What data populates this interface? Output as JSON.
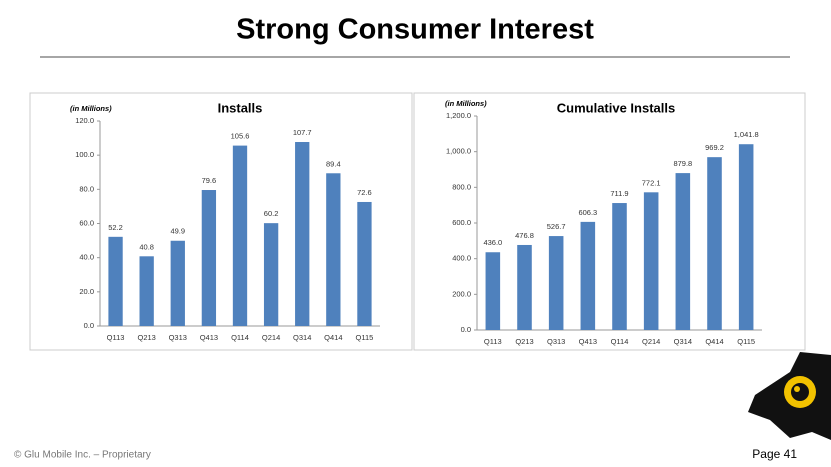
{
  "header": {
    "title": "Strong Consumer Interest"
  },
  "footer": {
    "copyright": "© Glu Mobile Inc. – Proprietary",
    "page": "Page 41"
  },
  "chart_data": [
    {
      "type": "bar",
      "title": "Installs",
      "note": "(in Millions)",
      "categories": [
        "Q113",
        "Q213",
        "Q313",
        "Q413",
        "Q114",
        "Q214",
        "Q314",
        "Q414",
        "Q115"
      ],
      "values": [
        52.2,
        40.8,
        49.9,
        79.6,
        105.6,
        60.2,
        107.7,
        89.4,
        72.6
      ],
      "color": "#4f81bd",
      "grid": false,
      "ylim": [
        0,
        120
      ],
      "yticks": [
        {
          "value": 0,
          "label": "0.0"
        },
        {
          "value": 20,
          "label": "20.0"
        },
        {
          "value": 40,
          "label": "40.0"
        },
        {
          "value": 60,
          "label": "60.0"
        },
        {
          "value": 80,
          "label": "80.0"
        },
        {
          "value": 100,
          "label": "100.0"
        },
        {
          "value": 120,
          "label": "120.0"
        }
      ]
    },
    {
      "type": "bar",
      "title": "Cumulative Installs",
      "note": "(in Millions)",
      "categories": [
        "Q113",
        "Q213",
        "Q313",
        "Q413",
        "Q114",
        "Q214",
        "Q314",
        "Q414",
        "Q115"
      ],
      "values": [
        436.0,
        476.8,
        526.7,
        606.3,
        711.9,
        772.1,
        879.8,
        969.2,
        1041.8
      ],
      "value_labels": [
        "436.0",
        "476.8",
        "526.7",
        "606.3",
        "711.9",
        "772.1",
        "879.8",
        "969.2",
        "1,041.8"
      ],
      "color": "#4f81bd",
      "grid": false,
      "ylim": [
        0,
        1200
      ],
      "yticks": [
        {
          "value": 0,
          "label": "0.0"
        },
        {
          "value": 200,
          "label": "200.0"
        },
        {
          "value": 400,
          "label": "400.0"
        },
        {
          "value": 600,
          "label": "600.0"
        },
        {
          "value": 800,
          "label": "800.0"
        },
        {
          "value": 1000,
          "label": "1,000.0"
        },
        {
          "value": 1200,
          "label": "1,200.0"
        }
      ]
    }
  ]
}
